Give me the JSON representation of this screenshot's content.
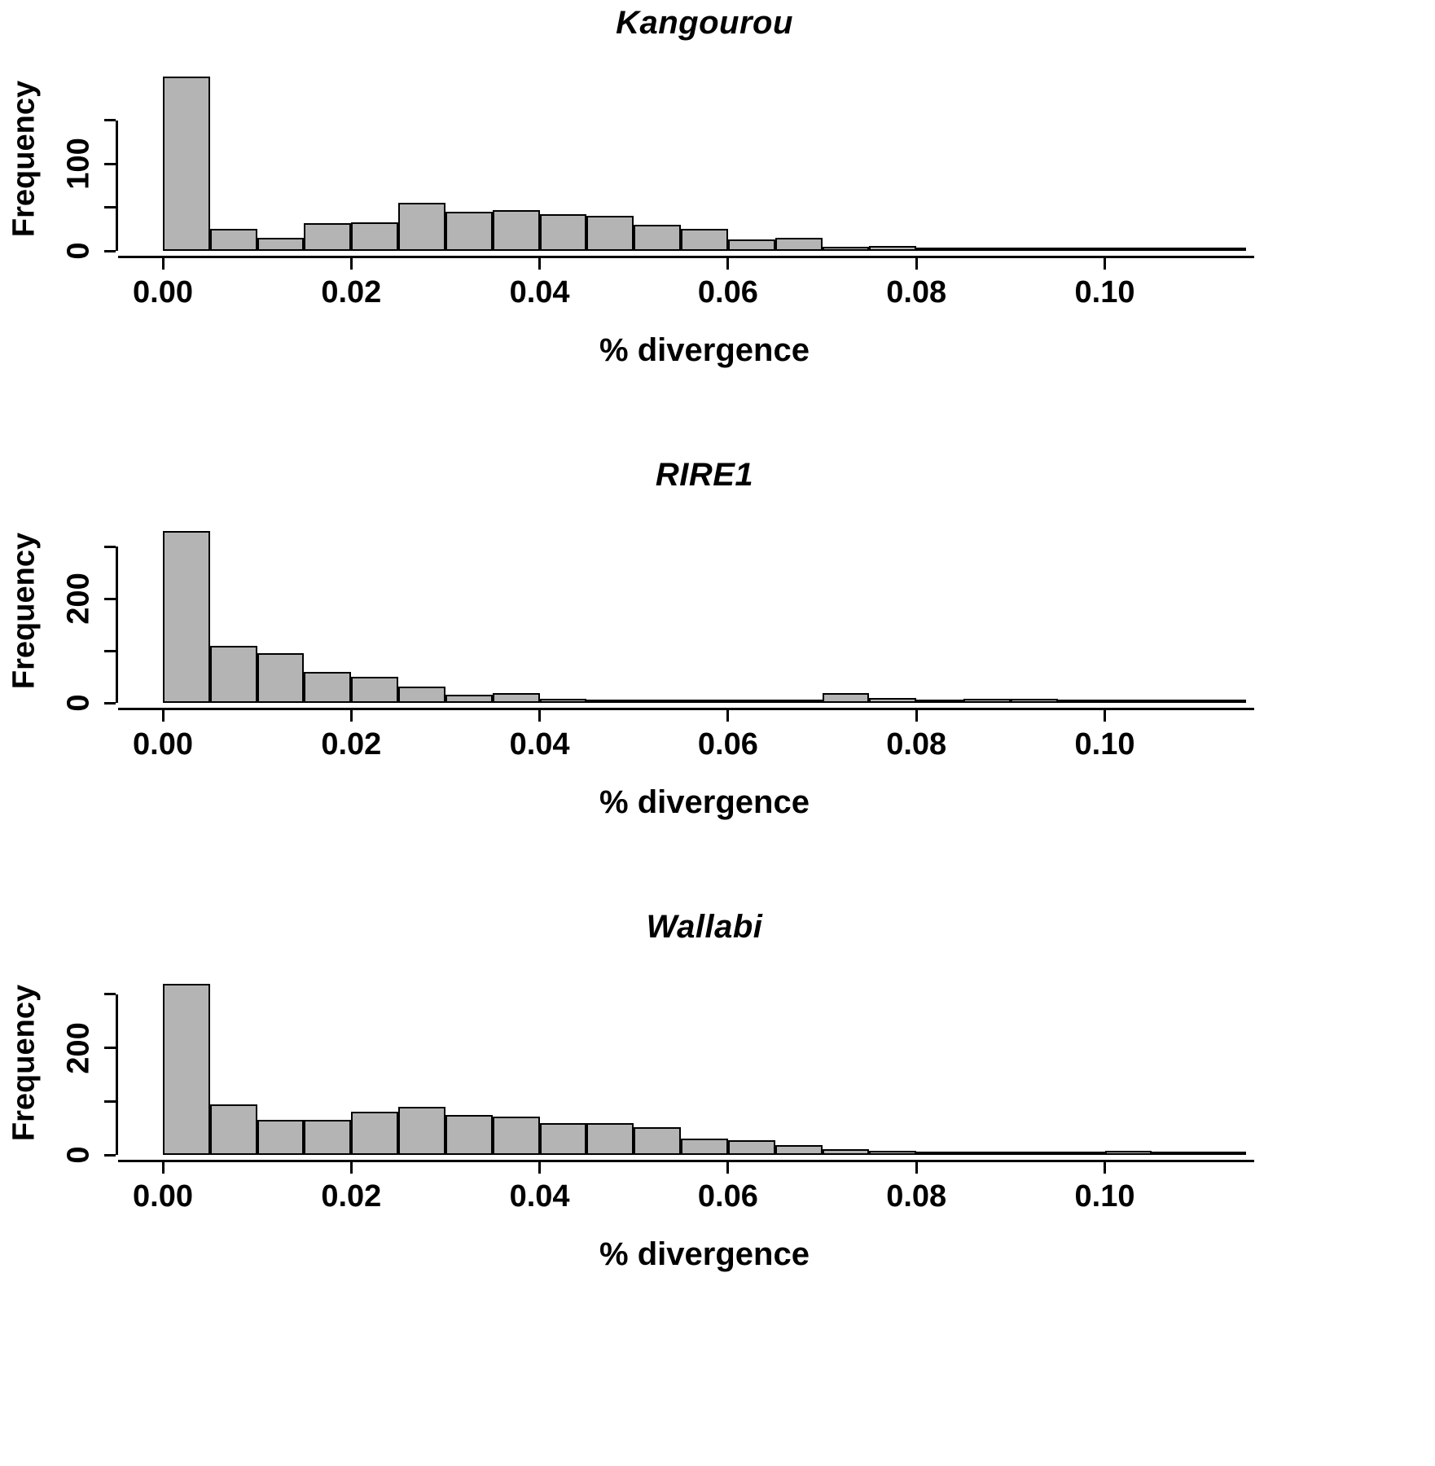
{
  "figure": {
    "background": "#ffffff",
    "bar_fill": "#b4b4b4",
    "axis_color": "#000000"
  },
  "chart_data": [
    {
      "type": "bar",
      "title": "Kangourou",
      "xlabel": "% divergence",
      "ylabel": "Frequency",
      "bin_start": 0,
      "bin_width": 0.005,
      "x_max": 0.115,
      "y_max": 215,
      "y_axis_extent": 150,
      "grid": false,
      "legend": "none",
      "x_ticks": [
        {
          "value": 0.0,
          "label": "0.00"
        },
        {
          "value": 0.02,
          "label": "0.02"
        },
        {
          "value": 0.04,
          "label": "0.04"
        },
        {
          "value": 0.06,
          "label": "0.06"
        },
        {
          "value": 0.08,
          "label": "0.08"
        },
        {
          "value": 0.1,
          "label": "0.10"
        }
      ],
      "y_ticks": [
        {
          "value": 0,
          "label": "0"
        },
        {
          "value": 50,
          "label": ""
        },
        {
          "value": 100,
          "label": "100"
        },
        {
          "value": 150,
          "label": ""
        }
      ],
      "values": [
        200,
        25,
        15,
        32,
        33,
        55,
        45,
        47,
        42,
        40,
        30,
        25,
        13,
        15,
        5,
        6,
        3,
        2,
        2,
        1,
        1,
        1,
        2
      ],
      "bar_color": "#b4b4b4"
    },
    {
      "type": "bar",
      "title": "RIRE1",
      "xlabel": "% divergence",
      "ylabel": "Frequency",
      "bin_start": 0,
      "bin_width": 0.005,
      "x_max": 0.115,
      "y_max": 360,
      "y_axis_extent": 300,
      "grid": false,
      "legend": "none",
      "x_ticks": [
        {
          "value": 0.0,
          "label": "0.00"
        },
        {
          "value": 0.02,
          "label": "0.02"
        },
        {
          "value": 0.04,
          "label": "0.04"
        },
        {
          "value": 0.06,
          "label": "0.06"
        },
        {
          "value": 0.08,
          "label": "0.08"
        },
        {
          "value": 0.1,
          "label": "0.10"
        }
      ],
      "y_ticks": [
        {
          "value": 0,
          "label": "0"
        },
        {
          "value": 100,
          "label": ""
        },
        {
          "value": 200,
          "label": "200"
        },
        {
          "value": 300,
          "label": ""
        }
      ],
      "values": [
        330,
        110,
        95,
        60,
        50,
        32,
        15,
        18,
        8,
        6,
        5,
        4,
        4,
        6,
        18,
        10,
        4,
        8,
        8,
        3,
        2,
        4,
        3
      ],
      "bar_color": "#b4b4b4"
    },
    {
      "type": "bar",
      "title": "Wallabi",
      "xlabel": "% divergence",
      "ylabel": "Frequency",
      "bin_start": 0,
      "bin_width": 0.005,
      "x_max": 0.115,
      "y_max": 350,
      "y_axis_extent": 300,
      "grid": false,
      "legend": "none",
      "x_ticks": [
        {
          "value": 0.0,
          "label": "0.00"
        },
        {
          "value": 0.02,
          "label": "0.02"
        },
        {
          "value": 0.04,
          "label": "0.04"
        },
        {
          "value": 0.06,
          "label": "0.06"
        },
        {
          "value": 0.08,
          "label": "0.08"
        },
        {
          "value": 0.1,
          "label": "0.10"
        }
      ],
      "y_ticks": [
        {
          "value": 0,
          "label": "0"
        },
        {
          "value": 100,
          "label": ""
        },
        {
          "value": 200,
          "label": "200"
        },
        {
          "value": 300,
          "label": ""
        }
      ],
      "values": [
        320,
        95,
        65,
        65,
        80,
        90,
        75,
        72,
        60,
        60,
        52,
        30,
        28,
        18,
        10,
        8,
        6,
        4,
        3,
        2,
        8,
        5,
        3
      ],
      "bar_color": "#b4b4b4"
    }
  ]
}
